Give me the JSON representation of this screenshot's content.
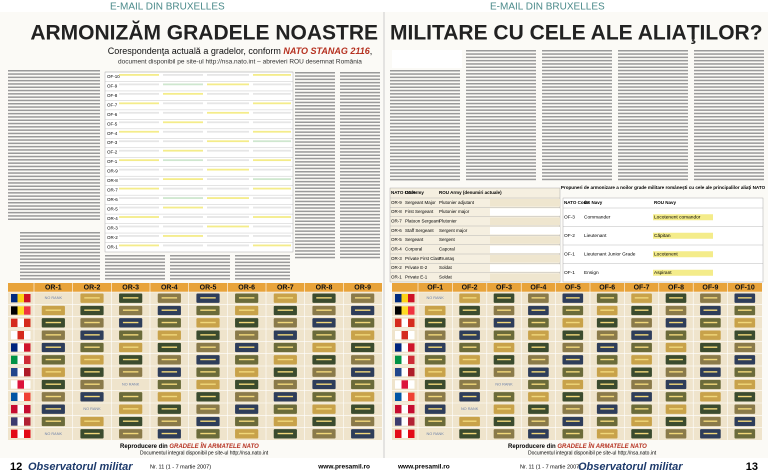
{
  "header": {
    "left": "E-MAIL DIN BRUXELLES",
    "right": "E-MAIL DIN BRUXELLES"
  },
  "title": {
    "left": "ARMONIZĂM GRADELE NOASTRE",
    "right": "MILITARE CU CELE ALE ALIAŢILOR?"
  },
  "subtitle": {
    "lead": "Corespondenţa actuală a gradelor, conform ",
    "emph": "NATO STANAG 2116",
    "tail": ",",
    "line2": "document disponibil pe site-ul http://nsa.nato.int – abrevieri ROU desemnat România"
  },
  "left_table": {
    "codes": [
      "OF-10",
      "OF-9",
      "OF-8",
      "OF-7",
      "OF-6",
      "OF-5",
      "OF-4",
      "OF-3",
      "OF-2",
      "OF-1",
      "OR-9",
      "OR-8",
      "OR-7",
      "OR-6",
      "OR-5",
      "OR-4",
      "OR-3",
      "OR-2",
      "OR-1"
    ]
  },
  "middle_table": {
    "headers": [
      "NATO Code",
      "US Army",
      "ROU Army (denumiri actuale)"
    ],
    "rows": [
      [
        "OR-9",
        "Sergeant Major",
        "Plutonier adjutant"
      ],
      [
        "OR-8",
        "First Sergeant",
        "Plutonier major"
      ],
      [
        "OR-7",
        "Platoon Sergeant",
        "Plutonier"
      ],
      [
        "OR-6",
        "Staff Sergeant",
        "Sergent major"
      ],
      [
        "OR-5",
        "Sergeant",
        "Sergent"
      ],
      [
        "OR-4",
        "Corporal",
        "Caporal"
      ],
      [
        "OR-3",
        "Private First Class",
        "Fruntaş"
      ],
      [
        "OR-2",
        "Private E-2",
        "Soldat"
      ],
      [
        "OR-1",
        "Private E-1",
        "Soldat"
      ]
    ]
  },
  "right_table": {
    "caption": "Propuneri de armonizare a noilor grade militare româneşti cu cele ale principalilor aliaţi NATO",
    "headers": [
      "NATO Code",
      "US Navy",
      "ROU Navy"
    ],
    "rows": [
      [
        "OF-3",
        "Commander",
        "Locotenent comandor"
      ],
      [
        "OF-2",
        "Lieutenant",
        "Căpitan"
      ],
      [
        "OF-1",
        "Lieutenant Junior Grade",
        "Locotenent"
      ],
      [
        "OF-1",
        "Ensign",
        "Aspirant"
      ]
    ]
  },
  "grid": {
    "or": [
      "OR-1",
      "OR-2",
      "OR-3",
      "OR-4",
      "OR-5",
      "OR-6",
      "OR-7",
      "OR-8",
      "OR-9"
    ],
    "of": [
      "OF-1",
      "OF-2",
      "OF-3",
      "OF-4",
      "OF-5",
      "OF-6",
      "OF-7",
      "OF-8",
      "OF-9",
      "OF-10"
    ],
    "no_rank": "NO RANK"
  },
  "captions": {
    "lead": "Reproducere din ",
    "emph": "GRADELE ÎN ARMATELE NATO",
    "tail": "Documentul integral disponibil pe site-ul http://nsa.nato.int"
  },
  "footer": {
    "left_page": "12",
    "brand": "Observatorul militar",
    "issue": "Nr. 11 (1 - 7 martie 2007)",
    "site": "www.presamil.ro",
    "right_page": "13"
  }
}
